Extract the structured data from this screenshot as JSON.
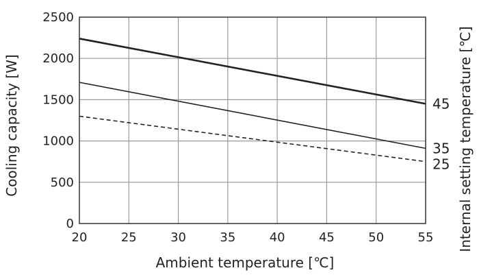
{
  "chart_data": {
    "type": "line",
    "title": "",
    "xlabel": "Ambient temperature [℃]",
    "ylabel": "Cooling capacity [W]",
    "y2label": "Internal setting temperature [℃]",
    "xlim": [
      20,
      55
    ],
    "ylim": [
      0,
      2500
    ],
    "xticks": [
      20,
      25,
      30,
      35,
      40,
      45,
      50,
      55
    ],
    "yticks": [
      0,
      500,
      1000,
      1500,
      2000,
      2500
    ],
    "grid": true,
    "legend": "right-end labels",
    "x": [
      20,
      55
    ],
    "series": [
      {
        "name": "45",
        "values": [
          2240,
          1450
        ],
        "style": "solid-thick",
        "color": "#222222"
      },
      {
        "name": "35",
        "values": [
          1710,
          910
        ],
        "style": "solid",
        "color": "#222222"
      },
      {
        "name": "25",
        "values": [
          1300,
          750
        ],
        "style": "dashed",
        "color": "#222222"
      }
    ]
  }
}
